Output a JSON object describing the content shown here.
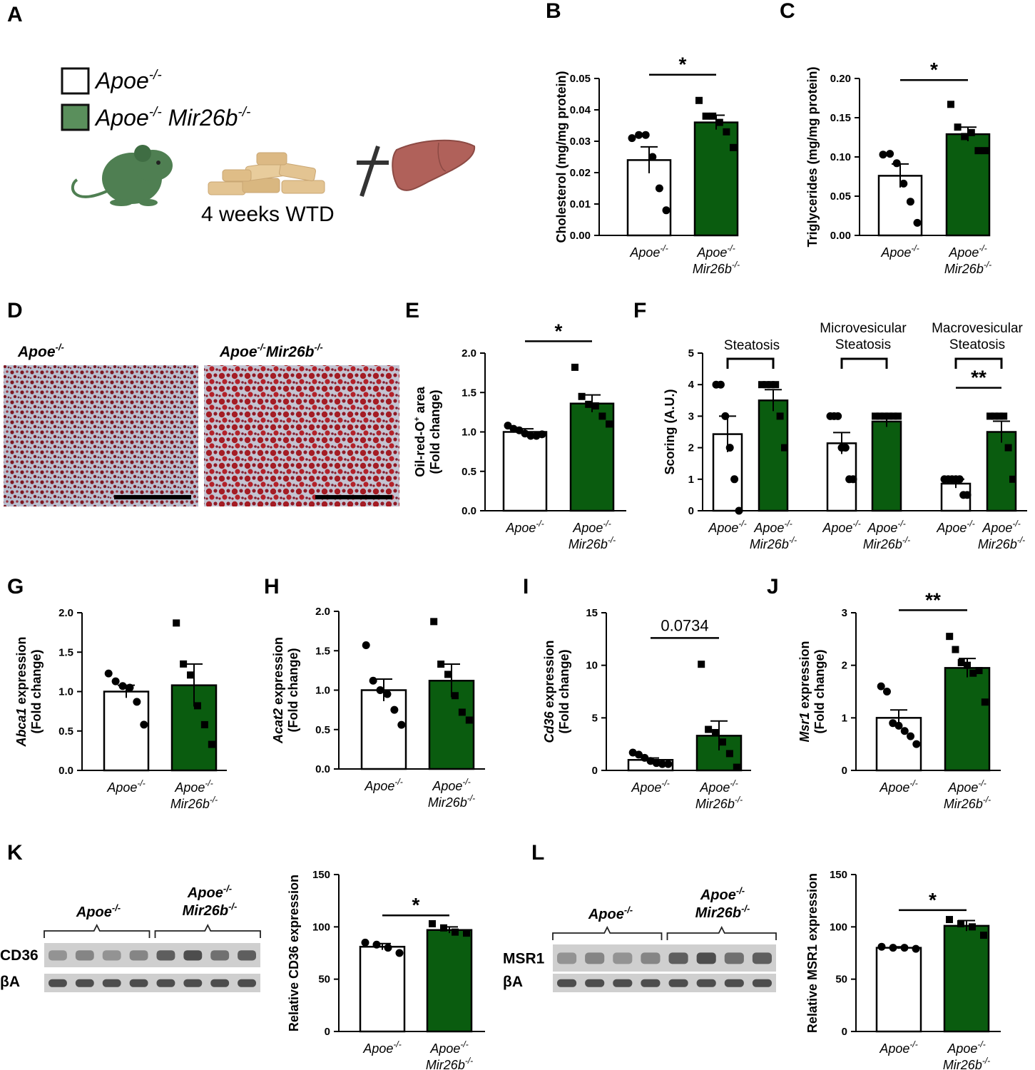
{
  "colors": {
    "control": "#ffffff",
    "knockout": "#0a5c0f",
    "stroke": "#000000",
    "mouse": "#4f7f52",
    "chow": "#e3c492",
    "liver": "#b0615a",
    "stain_red": "#8b1a22",
    "stain_blue": "#bcc3d4"
  },
  "panelA": {
    "letter": "A",
    "legend": [
      {
        "label": "Apoe",
        "sup": "-/-",
        "label2": "",
        "sup2": "",
        "fill": "#ffffff"
      },
      {
        "label": "Apoe",
        "sup": "-/-",
        "label2": " Mir26b",
        "sup2": "-/-",
        "fill": "#5a8f5c"
      }
    ],
    "diet": "4 weeks WTD",
    "icons": [
      "mouse-icon",
      "western-diet-chow-icon",
      "sacrifice-cross-icon",
      "liver-icon"
    ]
  },
  "panelD": {
    "letter": "D",
    "labels": [
      {
        "main": "Apoe",
        "sup": "-/-"
      },
      {
        "main": "Apoe",
        "sup": "-/-",
        "main2": "Mir26b",
        "sup2": "-/-"
      }
    ]
  },
  "chart_data": [
    {
      "id": "B",
      "type": "bar",
      "ylabel": "Cholesterol (mg/mg protein)",
      "ylim": [
        0,
        0.05
      ],
      "yticks": [
        "0.00",
        "0.01",
        "0.02",
        "0.03",
        "0.04",
        "0.05"
      ],
      "categories": [
        {
          "l1": "Apoe-/-",
          "l2": ""
        },
        {
          "l1": "Apoe-/-",
          "l2": "Mir26b-/-"
        }
      ],
      "values": [
        0.024,
        0.036
      ],
      "errors": [
        0.0042,
        0.0023
      ],
      "points": [
        [
          0.031,
          0.032,
          0.032,
          0.025,
          0.015,
          0.008
        ],
        [
          0.043,
          0.038,
          0.038,
          0.036,
          0.033,
          0.028
        ]
      ],
      "sig": [
        {
          "from": 0,
          "to": 1,
          "label": "*",
          "y": 0.0512
        }
      ]
    },
    {
      "id": "C",
      "type": "bar",
      "ylabel": "Triglycerides (mg/mg protein)",
      "ylim": [
        0,
        0.2
      ],
      "yticks": [
        "0.00",
        "0.05",
        "0.10",
        "0.15",
        "0.20"
      ],
      "categories": [
        {
          "l1": "Apoe-/-",
          "l2": ""
        },
        {
          "l1": "Apoe-/-",
          "l2": "Mir26b-/-"
        }
      ],
      "values": [
        0.076,
        0.129
      ],
      "errors": [
        0.015,
        0.009
      ],
      "points": [
        [
          0.103,
          0.104,
          0.092,
          0.066,
          0.043,
          0.016
        ],
        [
          0.167,
          0.138,
          0.126,
          0.131,
          0.108,
          0.108
        ]
      ],
      "sig": [
        {
          "from": 0,
          "to": 1,
          "label": "*",
          "y": 0.198
        }
      ]
    },
    {
      "id": "E",
      "type": "bar",
      "ylabel": "Oil-red-O+ area (Fold change)",
      "ylim": [
        0,
        2.0
      ],
      "yticks": [
        "0.0",
        "0.5",
        "1.0",
        "1.5",
        "2.0"
      ],
      "categories": [
        {
          "l1": "Apoe-/-",
          "l2": ""
        },
        {
          "l1": "Apoe-/-",
          "l2": "Mir26b-/-"
        }
      ],
      "values": [
        1.0,
        1.36
      ],
      "errors": [
        0.04,
        0.11
      ],
      "points": [
        [
          1.08,
          1.04,
          1.02,
          0.98,
          0.95,
          0.95,
          0.97
        ],
        [
          1.82,
          1.45,
          1.35,
          1.33,
          1.2,
          1.1
        ]
      ],
      "sig": [
        {
          "from": 0,
          "to": 1,
          "label": "*",
          "y": 2.15
        }
      ]
    },
    {
      "id": "F",
      "type": "bar",
      "ylabel": "Scoring (A.U.)",
      "ylim": [
        0,
        5
      ],
      "yticks": [
        "0",
        "1",
        "2",
        "3",
        "4",
        "5"
      ],
      "groups": [
        "Steatosis",
        "Microvesicular Steatosis",
        "Macrovesicular Steatosis"
      ],
      "values": [
        2.43,
        3.5,
        2.14,
        2.83,
        0.86,
        2.5
      ],
      "errors": [
        0.57,
        0.34,
        0.34,
        0.17,
        0.14,
        0.34
      ],
      "points": [
        [
          4,
          4,
          3,
          2,
          1,
          0
        ],
        [
          4,
          4,
          4,
          4,
          3,
          2
        ],
        [
          3,
          3,
          3,
          2,
          2,
          1,
          1
        ],
        [
          3,
          3,
          3,
          3,
          3,
          3
        ],
        [
          1,
          1,
          1,
          1,
          1,
          0.5,
          0.5
        ],
        [
          3,
          3,
          3,
          3,
          2,
          1
        ]
      ],
      "sig": [
        {
          "from": 4,
          "to": 5,
          "label": "**",
          "y": 3.9
        }
      ]
    },
    {
      "id": "G",
      "type": "bar",
      "ylabel": "Abca1 expression (Fold change)",
      "ylim": [
        0,
        2.0
      ],
      "yticks": [
        "0.0",
        "0.5",
        "1.0",
        "1.5",
        "2.0"
      ],
      "categories": [
        {
          "l1": "Apoe-/-",
          "l2": ""
        },
        {
          "l1": "Apoe-/-",
          "l2": "Mir26b-/-"
        }
      ],
      "values": [
        1.0,
        1.08
      ],
      "errors": [
        0.08,
        0.27
      ],
      "points": [
        [
          1.23,
          1.13,
          1.07,
          1.05,
          0.87,
          0.58
        ],
        [
          1.87,
          1.35,
          1.21,
          0.82,
          0.58,
          0.33
        ]
      ],
      "sig": []
    },
    {
      "id": "H",
      "type": "bar",
      "ylabel": "Acat2 expression (Fold change)",
      "ylim": [
        0,
        2.0
      ],
      "yticks": [
        "0.0",
        "0.5",
        "1.0",
        "1.5",
        "2.0"
      ],
      "categories": [
        {
          "l1": "Apoe-/-",
          "l2": ""
        },
        {
          "l1": "Apoe-/-",
          "l2": "Mir26b-/-"
        }
      ],
      "values": [
        1.0,
        1.12
      ],
      "errors": [
        0.14,
        0.21
      ],
      "points": [
        [
          1.57,
          1.12,
          1.0,
          0.95,
          0.75,
          0.56
        ],
        [
          1.87,
          1.33,
          1.2,
          0.93,
          0.72,
          0.62
        ]
      ],
      "sig": []
    },
    {
      "id": "I",
      "type": "bar",
      "ylabel": "Cd36 expression (Fold change)",
      "ylim": [
        0,
        15
      ],
      "yticks": [
        "0",
        "5",
        "10",
        "15"
      ],
      "categories": [
        {
          "l1": "Apoe-/-",
          "l2": ""
        },
        {
          "l1": "Apoe-/-",
          "l2": "Mir26b-/-"
        }
      ],
      "values": [
        1.0,
        3.3
      ],
      "errors": [
        0.18,
        1.4
      ],
      "points": [
        [
          1.7,
          1.5,
          1.2,
          0.9,
          0.7,
          0.6,
          0.6
        ],
        [
          10.1,
          3.9,
          3.6,
          2.7,
          1.6,
          0.3
        ]
      ],
      "sig": [
        {
          "from": 0,
          "to": 1,
          "label": "0.0734",
          "y": 12.6
        }
      ]
    },
    {
      "id": "J",
      "type": "bar",
      "ylabel": "Msr1 expression (Fold change)",
      "ylim": [
        0,
        3
      ],
      "yticks": [
        "0",
        "1",
        "2",
        "3"
      ],
      "categories": [
        {
          "l1": "Apoe-/-",
          "l2": ""
        },
        {
          "l1": "Apoe-/-",
          "l2": "Mir26b-/-"
        }
      ],
      "values": [
        1.0,
        1.95
      ],
      "errors": [
        0.15,
        0.18
      ],
      "points": [
        [
          1.6,
          1.5,
          0.9,
          0.85,
          0.75,
          0.65,
          0.5
        ],
        [
          2.55,
          2.3,
          2.05,
          2.0,
          1.85,
          1.9,
          1.3
        ]
      ],
      "sig": [
        {
          "from": 0,
          "to": 1,
          "label": "**",
          "y": 3.05
        }
      ]
    },
    {
      "id": "K",
      "type": "bar",
      "ylabel": "Relative CD36 expression",
      "ylim": [
        0,
        150
      ],
      "yticks": [
        "0",
        "50",
        "100",
        "150"
      ],
      "categories": [
        {
          "l1": "Apoe-/-",
          "l2": ""
        },
        {
          "l1": "Apoe-/-",
          "l2": "Mir26b-/-"
        }
      ],
      "values": [
        81,
        97
      ],
      "errors": [
        3,
        3
      ],
      "points": [
        [
          85,
          83,
          80,
          75
        ],
        [
          103,
          99,
          95,
          94
        ]
      ],
      "sig": [
        {
          "from": 0,
          "to": 1,
          "label": "*",
          "y": 111
        }
      ]
    },
    {
      "id": "L",
      "type": "bar",
      "ylabel": "Relative MSR1 expression",
      "ylim": [
        0,
        150
      ],
      "yticks": [
        "0",
        "50",
        "100",
        "150"
      ],
      "categories": [
        {
          "l1": "Apoe-/-",
          "l2": ""
        },
        {
          "l1": "Apoe-/-",
          "l2": "Mir26b-/-"
        }
      ],
      "values": [
        80,
        101
      ],
      "errors": [
        1,
        5
      ],
      "points": [
        [
          81,
          80,
          80,
          79
        ],
        [
          107,
          103,
          100,
          92
        ]
      ],
      "sig": [
        {
          "from": 0,
          "to": 1,
          "label": "*",
          "y": 116
        }
      ]
    }
  ],
  "blots": [
    {
      "id": "K",
      "groups": [
        {
          "main": "Apoe",
          "sup": "-/-"
        },
        {
          "main": "Apoe",
          "sup": "-/-",
          "main2": "Mir26b",
          "sup2": "-/-"
        }
      ],
      "rows": [
        "CD36",
        "βA"
      ]
    },
    {
      "id": "L",
      "groups": [
        {
          "main": "Apoe",
          "sup": "-/-"
        },
        {
          "main": "Apoe",
          "sup": "-/-",
          "main2": "Mir26b",
          "sup2": "-/-"
        }
      ],
      "rows": [
        "MSR1",
        "βA"
      ]
    }
  ]
}
